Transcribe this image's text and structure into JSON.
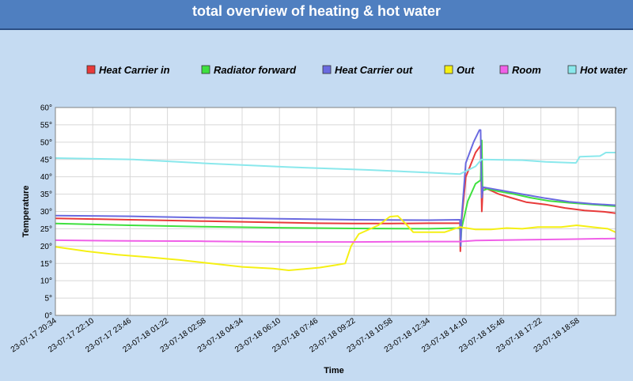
{
  "header": {
    "title": "total overview of heating & hot water"
  },
  "chart_data": {
    "type": "line",
    "xlabel": "Time",
    "ylabel": "Temperature",
    "y_unit_suffix": "°",
    "ylim": [
      0,
      60
    ],
    "yticks": [
      0,
      5,
      10,
      15,
      20,
      25,
      30,
      35,
      40,
      45,
      50,
      55,
      60
    ],
    "x_tick_labels": [
      "23-07-17 20:34",
      "23-07-17 22:10",
      "23-07-17 23:46",
      "23-07-18 01:22",
      "23-07-18 02:58",
      "23-07-18 04:34",
      "23-07-18 06:10",
      "23-07-18 07:46",
      "23-07-18 09:22",
      "23-07-18 10:58",
      "23-07-18 12:34",
      "23-07-18 14:10",
      "23-07-18 15:46",
      "23-07-18 17:22",
      "23-07-18 18:58"
    ],
    "xlim_minutes_from_start": [
      0,
      1440
    ],
    "grid": true,
    "legend_position": "top",
    "series": [
      {
        "name": "Heat Carrier in",
        "color": "#e83a3a",
        "points": [
          [
            0,
            28
          ],
          [
            96,
            27.8
          ],
          [
            192,
            27.6
          ],
          [
            288,
            27.4
          ],
          [
            384,
            27.2
          ],
          [
            480,
            27
          ],
          [
            576,
            26.8
          ],
          [
            672,
            26.6
          ],
          [
            768,
            26.5
          ],
          [
            864,
            26.5
          ],
          [
            960,
            26.6
          ],
          [
            1040,
            26.6
          ],
          [
            1041,
            18.5
          ],
          [
            1043,
            26
          ],
          [
            1055,
            40
          ],
          [
            1080,
            47
          ],
          [
            1093,
            49
          ],
          [
            1096,
            30
          ],
          [
            1099,
            37
          ],
          [
            1110,
            36.5
          ],
          [
            1140,
            35
          ],
          [
            1170,
            34
          ],
          [
            1210,
            32.7
          ],
          [
            1260,
            32
          ],
          [
            1310,
            31
          ],
          [
            1360,
            30.3
          ],
          [
            1410,
            29.9
          ],
          [
            1440,
            29.5
          ]
        ]
      },
      {
        "name": "Radiator forward",
        "color": "#3fe03f",
        "points": [
          [
            0,
            26.5
          ],
          [
            192,
            26
          ],
          [
            384,
            25.6
          ],
          [
            576,
            25.3
          ],
          [
            768,
            25.1
          ],
          [
            960,
            25
          ],
          [
            1040,
            25.2
          ],
          [
            1042,
            21
          ],
          [
            1044,
            25
          ],
          [
            1060,
            33
          ],
          [
            1080,
            38
          ],
          [
            1093,
            39
          ],
          [
            1096,
            50.5
          ],
          [
            1098,
            36
          ],
          [
            1110,
            36.5
          ],
          [
            1140,
            35.8
          ],
          [
            1180,
            35
          ],
          [
            1220,
            34
          ],
          [
            1270,
            33
          ],
          [
            1320,
            32.5
          ],
          [
            1380,
            32
          ],
          [
            1440,
            31.5
          ]
        ]
      },
      {
        "name": "Heat Carrier out",
        "color": "#6a6ae0",
        "points": [
          [
            0,
            28.8
          ],
          [
            192,
            28.6
          ],
          [
            384,
            28.2
          ],
          [
            576,
            27.9
          ],
          [
            768,
            27.6
          ],
          [
            960,
            27.5
          ],
          [
            1040,
            27.6
          ],
          [
            1042,
            20
          ],
          [
            1044,
            28
          ],
          [
            1055,
            44
          ],
          [
            1075,
            50
          ],
          [
            1090,
            53.5
          ],
          [
            1093,
            53.5
          ],
          [
            1096,
            34
          ],
          [
            1100,
            37
          ],
          [
            1140,
            36.2
          ],
          [
            1200,
            35
          ],
          [
            1260,
            33.8
          ],
          [
            1320,
            32.8
          ],
          [
            1380,
            32.2
          ],
          [
            1440,
            31.8
          ]
        ]
      },
      {
        "name": "Out",
        "color": "#f5f014",
        "points": [
          [
            0,
            19.8
          ],
          [
            80,
            18.5
          ],
          [
            160,
            17.5
          ],
          [
            240,
            16.8
          ],
          [
            320,
            16
          ],
          [
            400,
            15
          ],
          [
            480,
            14
          ],
          [
            560,
            13.5
          ],
          [
            600,
            13
          ],
          [
            680,
            13.8
          ],
          [
            720,
            14.5
          ],
          [
            745,
            15
          ],
          [
            760,
            20
          ],
          [
            780,
            23.5
          ],
          [
            800,
            24.5
          ],
          [
            830,
            26
          ],
          [
            860,
            28.5
          ],
          [
            880,
            28.7
          ],
          [
            900,
            26.5
          ],
          [
            920,
            24
          ],
          [
            960,
            24
          ],
          [
            1000,
            24
          ],
          [
            1040,
            25.5
          ],
          [
            1080,
            24.8
          ],
          [
            1120,
            24.8
          ],
          [
            1160,
            25.2
          ],
          [
            1200,
            25
          ],
          [
            1240,
            25.5
          ],
          [
            1300,
            25.5
          ],
          [
            1340,
            26
          ],
          [
            1380,
            25.5
          ],
          [
            1420,
            25
          ],
          [
            1440,
            24
          ]
        ]
      },
      {
        "name": "Room",
        "color": "#f060e8",
        "points": [
          [
            0,
            21.7
          ],
          [
            192,
            21.5
          ],
          [
            384,
            21.4
          ],
          [
            576,
            21.2
          ],
          [
            768,
            21.2
          ],
          [
            960,
            21.3
          ],
          [
            1040,
            21.3
          ],
          [
            1080,
            21.6
          ],
          [
            1200,
            21.8
          ],
          [
            1320,
            22
          ],
          [
            1440,
            22.2
          ]
        ]
      },
      {
        "name": "Hot water",
        "color": "#8ae8ec",
        "points": [
          [
            0,
            45.4
          ],
          [
            200,
            45
          ],
          [
            400,
            43.8
          ],
          [
            600,
            42.8
          ],
          [
            800,
            42
          ],
          [
            960,
            41.2
          ],
          [
            1040,
            40.8
          ],
          [
            1080,
            43
          ],
          [
            1095,
            45
          ],
          [
            1200,
            44.8
          ],
          [
            1260,
            44.3
          ],
          [
            1338,
            44
          ],
          [
            1348,
            45.8
          ],
          [
            1400,
            46
          ],
          [
            1415,
            47
          ],
          [
            1440,
            47
          ]
        ]
      }
    ]
  }
}
